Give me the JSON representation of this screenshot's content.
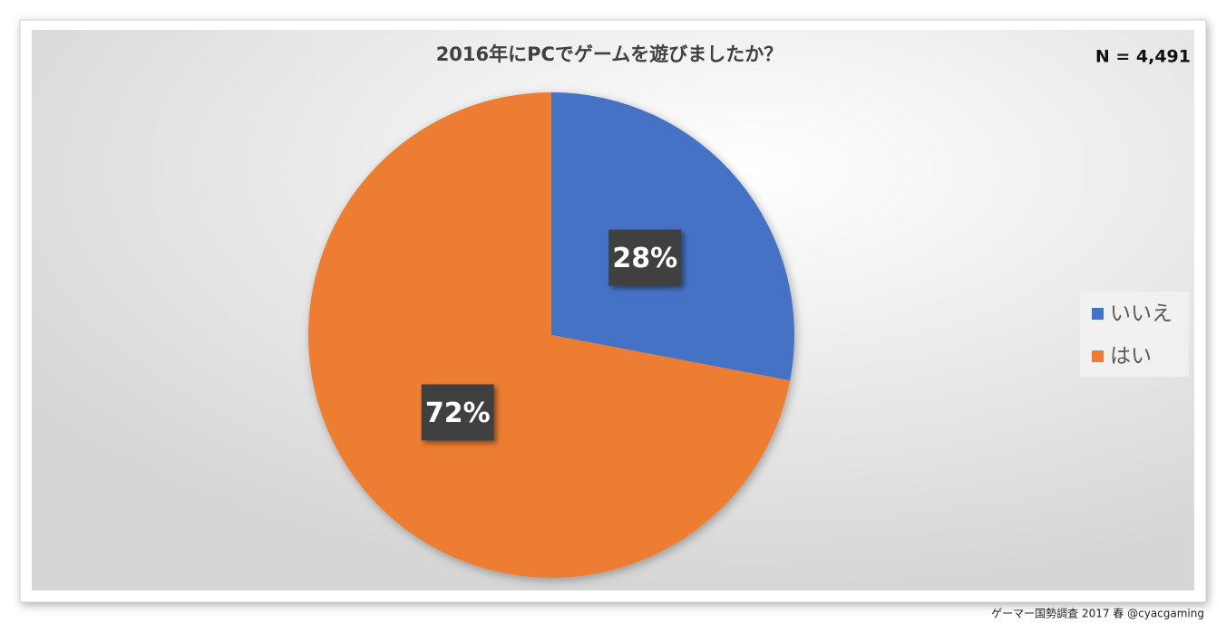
{
  "chart_data": {
    "type": "pie",
    "title": "2016年にPCでゲームを遊びましたか？",
    "annotation": "N = 4,491",
    "categories": [
      "いいえ",
      "はい"
    ],
    "values": [
      28,
      72
    ],
    "value_labels": [
      "28%",
      "72%"
    ],
    "colors": [
      "#4472c4",
      "#ed7d31"
    ],
    "legend": "right",
    "source": "ゲーマー国勢調査 2017 春 @cyacgaming"
  }
}
